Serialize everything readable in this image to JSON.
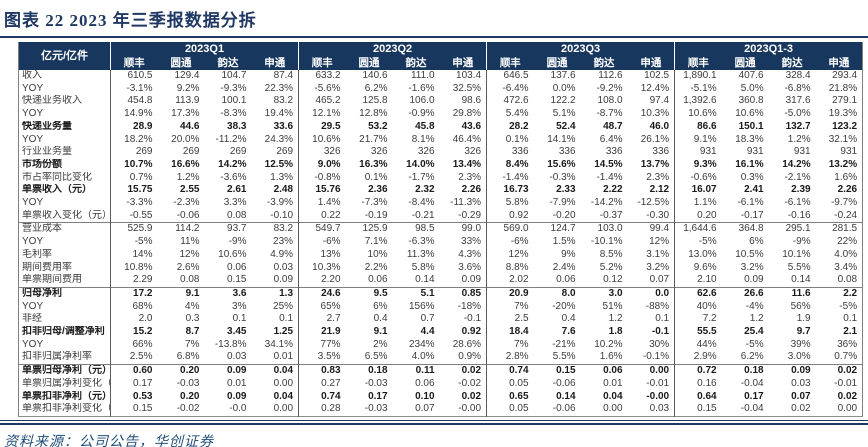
{
  "figure": {
    "title": "图表 22  2023 年三季报数据分拆"
  },
  "source": {
    "text": "资料来源：公司公告，华创证券"
  },
  "colors": {
    "header_navy": "#17375E",
    "title_navy": "#1F3864",
    "rule_navy": "#1F3864"
  },
  "table": {
    "unit_header": "亿元/亿件",
    "groups": [
      "2023Q1",
      "2023Q2",
      "2023Q3",
      "2023Q1-3"
    ],
    "companies": [
      "顺丰",
      "圆通",
      "韵达",
      "申通"
    ],
    "rows": [
      {
        "label": "收入",
        "bold": false,
        "section": false,
        "values": [
          "610.5",
          "129.4",
          "104.7",
          "87.4",
          "633.2",
          "140.6",
          "111.0",
          "103.4",
          "646.5",
          "137.6",
          "112.6",
          "102.5",
          "1,890.1",
          "407.6",
          "328.4",
          "293.4"
        ]
      },
      {
        "label": "YOY",
        "bold": false,
        "section": false,
        "values": [
          "-3.1%",
          "9.2%",
          "-9.3%",
          "22.3%",
          "-5.6%",
          "6.2%",
          "-1.6%",
          "32.5%",
          "-6.4%",
          "0.0%",
          "-9.2%",
          "12.4%",
          "-5.1%",
          "5.0%",
          "-6.8%",
          "21.8%"
        ]
      },
      {
        "label": "快递业务收入",
        "bold": false,
        "section": false,
        "values": [
          "454.8",
          "113.9",
          "100.1",
          "83.2",
          "465.2",
          "125.8",
          "106.0",
          "98.6",
          "472.6",
          "122.2",
          "108.0",
          "97.4",
          "1,392.6",
          "360.8",
          "317.6",
          "279.1"
        ]
      },
      {
        "label": "YOY",
        "bold": false,
        "section": false,
        "values": [
          "14.9%",
          "17.3%",
          "-8.3%",
          "19.4%",
          "12.1%",
          "12.8%",
          "-0.9%",
          "29.8%",
          "5.4%",
          "5.1%",
          "-8.7%",
          "10.3%",
          "10.6%",
          "10.6%",
          "-5.0%",
          "19.3%"
        ]
      },
      {
        "label": "快递业务量",
        "bold": true,
        "section": false,
        "values": [
          "28.9",
          "44.6",
          "38.3",
          "33.6",
          "29.5",
          "53.2",
          "45.8",
          "43.6",
          "28.2",
          "52.4",
          "48.7",
          "46.0",
          "86.6",
          "150.1",
          "132.7",
          "123.2"
        ]
      },
      {
        "label": "YOY",
        "bold": false,
        "section": false,
        "values": [
          "18.2%",
          "20.0%",
          "-11.2%",
          "24.3%",
          "10.6%",
          "21.7%",
          "8.1%",
          "46.4%",
          "0.1%",
          "14.1%",
          "6.4%",
          "26.1%",
          "9.1%",
          "18.3%",
          "1.2%",
          "32.1%"
        ]
      },
      {
        "label": "行业业务量",
        "bold": false,
        "section": false,
        "values": [
          "269",
          "269",
          "269",
          "269",
          "326",
          "326",
          "326",
          "326",
          "336",
          "336",
          "336",
          "336",
          "931",
          "931",
          "931",
          "931"
        ]
      },
      {
        "label": "市场份额",
        "bold": true,
        "section": false,
        "values": [
          "10.7%",
          "16.6%",
          "14.2%",
          "12.5%",
          "9.0%",
          "16.3%",
          "14.0%",
          "13.4%",
          "8.4%",
          "15.6%",
          "14.5%",
          "13.7%",
          "9.3%",
          "16.1%",
          "14.2%",
          "13.2%"
        ]
      },
      {
        "label": "市占率同比变化",
        "bold": false,
        "section": false,
        "values": [
          "0.7%",
          "1.2%",
          "-3.6%",
          "1.3%",
          "-0.8%",
          "0.1%",
          "-1.7%",
          "2.3%",
          "-1.4%",
          "-0.3%",
          "-1.4%",
          "2.3%",
          "-0.6%",
          "0.3%",
          "-2.1%",
          "1.6%"
        ]
      },
      {
        "label": "单票收入（元）",
        "bold": true,
        "section": false,
        "values": [
          "15.75",
          "2.55",
          "2.61",
          "2.48",
          "15.76",
          "2.36",
          "2.32",
          "2.26",
          "16.73",
          "2.33",
          "2.22",
          "2.12",
          "16.07",
          "2.41",
          "2.39",
          "2.26"
        ]
      },
      {
        "label": "YOY",
        "bold": false,
        "section": false,
        "values": [
          "-3.3%",
          "-2.3%",
          "3.3%",
          "-3.9%",
          "1.4%",
          "-7.3%",
          "-8.4%",
          "-11.3%",
          "5.8%",
          "-7.9%",
          "-14.2%",
          "-12.5%",
          "1.1%",
          "-6.1%",
          "-6.1%",
          "-9.7%"
        ]
      },
      {
        "label": "单票收入变化（元）",
        "bold": false,
        "section": false,
        "values": [
          "-0.55",
          "-0.06",
          "0.08",
          "-0.10",
          "0.22",
          "-0.19",
          "-0.21",
          "-0.29",
          "0.92",
          "-0.20",
          "-0.37",
          "-0.30",
          "0.20",
          "-0.17",
          "-0.16",
          "-0.24"
        ]
      },
      {
        "label": "营业成本",
        "bold": false,
        "section": true,
        "values": [
          "525.9",
          "114.2",
          "93.7",
          "83.2",
          "549.7",
          "125.9",
          "98.5",
          "99.0",
          "569.0",
          "124.7",
          "103.0",
          "99.4",
          "1,644.6",
          "364.8",
          "295.1",
          "281.5"
        ]
      },
      {
        "label": "YOY",
        "bold": false,
        "section": false,
        "values": [
          "-5%",
          "11%",
          "-9%",
          "23%",
          "-6%",
          "7.1%",
          "-6.3%",
          "33%",
          "-6%",
          "1.5%",
          "-10.1%",
          "12%",
          "-5%",
          "6%",
          "-9%",
          "22%"
        ]
      },
      {
        "label": "毛利率",
        "bold": false,
        "section": false,
        "values": [
          "14%",
          "12%",
          "10.6%",
          "4.9%",
          "13%",
          "10%",
          "11.3%",
          "4.3%",
          "12%",
          "9%",
          "8.5%",
          "3.1%",
          "13.0%",
          "10.5%",
          "10.1%",
          "4.0%"
        ]
      },
      {
        "label": "期间费用率",
        "bold": false,
        "section": false,
        "values": [
          "10.8%",
          "2.6%",
          "0.06",
          "0.03",
          "10.3%",
          "2.2%",
          "5.8%",
          "3.6%",
          "8.8%",
          "2.4%",
          "5.2%",
          "3.2%",
          "9.6%",
          "3.2%",
          "5.5%",
          "3.4%"
        ]
      },
      {
        "label": "单票期间费用",
        "bold": false,
        "section": false,
        "values": [
          "2.29",
          "0.08",
          "0.15",
          "0.09",
          "2.20",
          "0.06",
          "0.14",
          "0.09",
          "2.02",
          "0.06",
          "0.12",
          "0.07",
          "2.10",
          "0.09",
          "0.14",
          "0.08"
        ]
      },
      {
        "label": "归母净利",
        "bold": true,
        "section": true,
        "values": [
          "17.2",
          "9.1",
          "3.6",
          "1.3",
          "24.6",
          "9.5",
          "5.1",
          "0.85",
          "20.9",
          "8.0",
          "3.0",
          "0.0",
          "62.6",
          "26.6",
          "11.6",
          "2.2"
        ]
      },
      {
        "label": "YOY",
        "bold": false,
        "section": false,
        "values": [
          "68%",
          "4%",
          "3%",
          "25%",
          "65%",
          "6%",
          "156%",
          "-18%",
          "7%",
          "-20%",
          "51%",
          "-88%",
          "40%",
          "-4%",
          "56%",
          "-5%"
        ]
      },
      {
        "label": "非经",
        "bold": false,
        "section": false,
        "values": [
          "2.0",
          "0.3",
          "0.1",
          "0.1",
          "2.7",
          "0.4",
          "0.7",
          "-0.1",
          "2.5",
          "0.4",
          "1.2",
          "0.1",
          "7.2",
          "1.2",
          "1.9",
          "0.1"
        ]
      },
      {
        "label": "扣非归母/调整净利",
        "bold": true,
        "section": false,
        "values": [
          "15.2",
          "8.7",
          "3.45",
          "1.25",
          "21.9",
          "9.1",
          "4.4",
          "0.92",
          "18.4",
          "7.6",
          "1.8",
          "-0.1",
          "55.5",
          "25.4",
          "9.7",
          "2.1"
        ]
      },
      {
        "label": "YOY",
        "bold": false,
        "section": false,
        "values": [
          "66%",
          "7%",
          "-13.8%",
          "34.1%",
          "77%",
          "2%",
          "234%",
          "28.6%",
          "7%",
          "-21%",
          "10.2%",
          "30%",
          "44%",
          "-5%",
          "39%",
          "36%"
        ]
      },
      {
        "label": "扣非归属净利率",
        "bold": false,
        "section": false,
        "values": [
          "2.5%",
          "6.8%",
          "0.03",
          "0.01",
          "3.5%",
          "6.5%",
          "4.0%",
          "0.9%",
          "2.8%",
          "5.5%",
          "1.6%",
          "-0.1%",
          "2.9%",
          "6.2%",
          "3.0%",
          "0.7%"
        ]
      },
      {
        "label": "单票归母净利（元）",
        "bold": true,
        "section": true,
        "values": [
          "0.60",
          "0.20",
          "0.09",
          "0.04",
          "0.83",
          "0.18",
          "0.11",
          "0.02",
          "0.74",
          "0.15",
          "0.06",
          "0.00",
          "0.72",
          "0.18",
          "0.09",
          "0.02"
        ]
      },
      {
        "label": "单票归属净利变化（元）",
        "bold": false,
        "section": false,
        "values": [
          "0.17",
          "-0.03",
          "0.01",
          "0.00",
          "0.27",
          "-0.03",
          "0.06",
          "-0.02",
          "0.05",
          "-0.06",
          "0.01",
          "-0.01",
          "0.16",
          "-0.04",
          "0.03",
          "-0.01"
        ]
      },
      {
        "label": "单票扣非净利（元）",
        "bold": true,
        "section": false,
        "values": [
          "0.53",
          "0.20",
          "0.09",
          "0.04",
          "0.74",
          "0.17",
          "0.10",
          "0.02",
          "0.65",
          "0.14",
          "0.04",
          "-0.00",
          "0.64",
          "0.17",
          "0.07",
          "0.02"
        ]
      },
      {
        "label": "单票扣非净利变化（元）",
        "bold": false,
        "section": false,
        "values": [
          "0.15",
          "-0.02",
          "-0.0",
          "0.00",
          "0.28",
          "-0.03",
          "0.07",
          "-0.00",
          "0.05",
          "-0.06",
          "0.00",
          "0.03",
          "0.15",
          "-0.04",
          "0.02",
          "0.00"
        ]
      }
    ]
  }
}
